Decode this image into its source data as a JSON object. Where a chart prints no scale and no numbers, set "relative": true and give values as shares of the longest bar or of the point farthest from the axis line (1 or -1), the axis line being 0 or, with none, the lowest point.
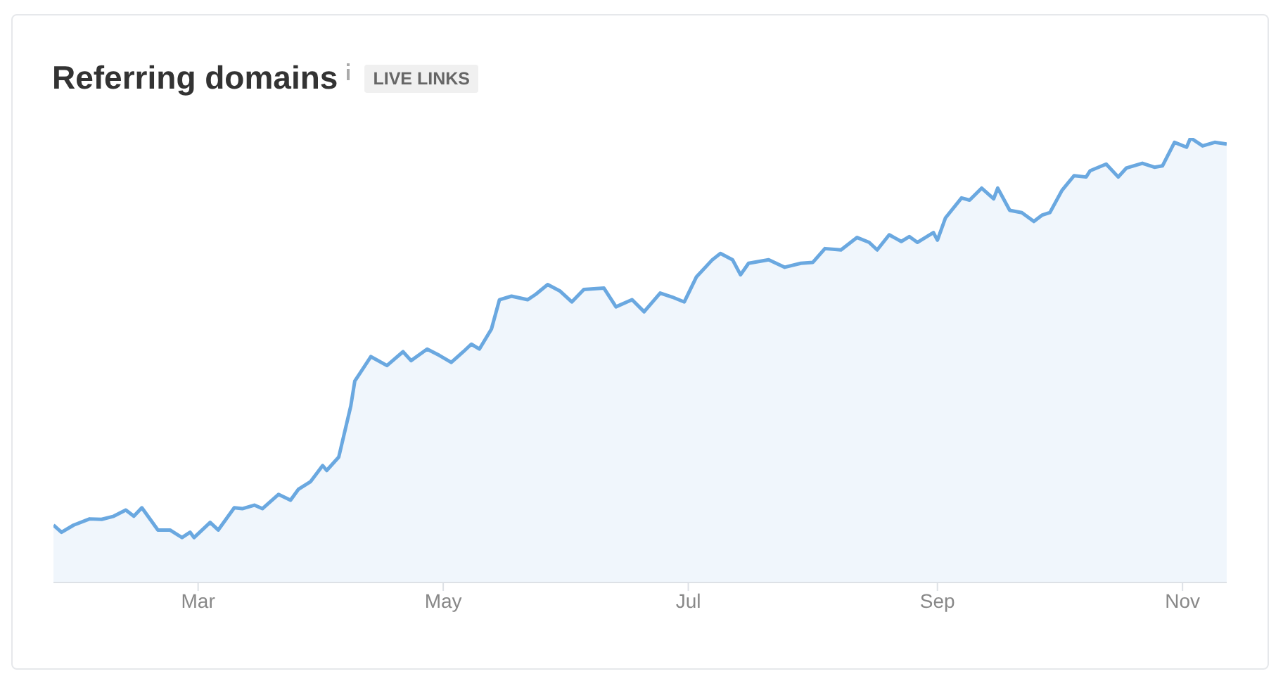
{
  "chart_data": {
    "type": "area",
    "title": "Referring domains",
    "subtitle": "LIVE LINKS",
    "relative": true,
    "legend": false,
    "x": [
      "--01-24",
      "--01-26",
      "--01-29",
      "--02-02",
      "--02-05",
      "--02-08",
      "--02-11",
      "--02-13",
      "--02-15",
      "--02-19",
      "--02-22",
      "--02-25",
      "--02-27",
      "--02-28",
      "--03-04",
      "--03-06",
      "--03-10",
      "--03-12",
      "--03-15",
      "--03-17",
      "--03-21",
      "--03-24",
      "--03-26",
      "--03-29",
      "--04-01",
      "--04-02",
      "--04-05",
      "--04-08",
      "--04-09",
      "--04-13",
      "--04-17",
      "--04-21",
      "--04-23",
      "--04-27",
      "--04-30",
      "--05-03",
      "--05-06",
      "--05-08",
      "--05-10",
      "--05-13",
      "--05-15",
      "--05-18",
      "--05-22",
      "--05-24",
      "--05-27",
      "--05-30",
      "--06-02",
      "--06-05",
      "--06-10",
      "--06-13",
      "--06-17",
      "--06-20",
      "--06-24",
      "--06-27",
      "--06-30",
      "--07-03",
      "--07-07",
      "--07-09",
      "--07-12",
      "--07-14",
      "--07-16",
      "--07-21",
      "--07-25",
      "--07-29",
      "--08-01",
      "--08-04",
      "--08-08",
      "--08-12",
      "--08-15",
      "--08-17",
      "--08-20",
      "--08-23",
      "--08-25",
      "--08-27",
      "--08-31",
      "--09-01",
      "--09-03",
      "--09-07",
      "--09-09",
      "--09-12",
      "--09-15",
      "--09-16",
      "--09-19",
      "--09-22",
      "--09-25",
      "--09-27",
      "--09-29",
      "--10-02",
      "--10-05",
      "--10-08",
      "--10-09",
      "--10-13",
      "--10-16",
      "--10-18",
      "--10-22",
      "--10-25",
      "--10-27",
      "--10-30",
      "--11-02",
      "--11-03",
      "--11-06",
      "--11-09",
      "--11-12"
    ],
    "series": [
      {
        "color": "#6aa8e0",
        "values": [
          0.129,
          0.113,
          0.129,
          0.143,
          0.142,
          0.149,
          0.163,
          0.149,
          0.168,
          0.118,
          0.118,
          0.101,
          0.113,
          0.101,
          0.135,
          0.118,
          0.168,
          0.166,
          0.174,
          0.166,
          0.198,
          0.185,
          0.21,
          0.227,
          0.263,
          0.252,
          0.282,
          0.397,
          0.453,
          0.508,
          0.488,
          0.519,
          0.499,
          0.525,
          0.511,
          0.495,
          0.519,
          0.536,
          0.525,
          0.57,
          0.636,
          0.644,
          0.636,
          0.648,
          0.67,
          0.656,
          0.631,
          0.659,
          0.662,
          0.62,
          0.636,
          0.609,
          0.651,
          0.642,
          0.631,
          0.687,
          0.726,
          0.74,
          0.726,
          0.692,
          0.718,
          0.726,
          0.709,
          0.718,
          0.72,
          0.751,
          0.748,
          0.776,
          0.765,
          0.748,
          0.782,
          0.767,
          0.778,
          0.765,
          0.787,
          0.77,
          0.82,
          0.865,
          0.86,
          0.887,
          0.863,
          0.887,
          0.837,
          0.832,
          0.812,
          0.826,
          0.832,
          0.882,
          0.915,
          0.912,
          0.926,
          0.941,
          0.912,
          0.932,
          0.943,
          0.934,
          0.937,
          0.99,
          0.979,
          1,
          0.982,
          0.99,
          0.986
        ]
      }
    ],
    "xlim": [
      "--01-24",
      "--11-12"
    ],
    "xticks": [
      {
        "value": "--03-01",
        "label": "Mar"
      },
      {
        "value": "--05-01",
        "label": "May"
      },
      {
        "value": "--07-01",
        "label": "Jul"
      },
      {
        "value": "--09-01",
        "label": "Sep"
      },
      {
        "value": "--11-01",
        "label": "Nov"
      }
    ]
  }
}
